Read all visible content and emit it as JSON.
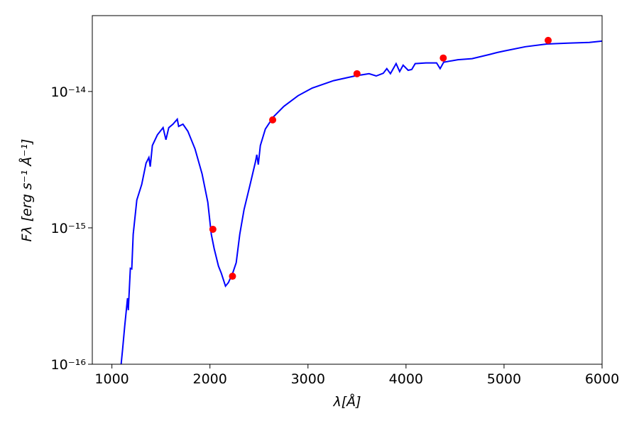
{
  "chart_data": {
    "type": "line",
    "xlabel": "λ[Å]",
    "ylabel": "Fλ [erg s⁻¹ Å⁻¹]",
    "xlim": [
      800,
      6000
    ],
    "xticks": [
      1000,
      2000,
      3000,
      4000,
      5000,
      6000
    ],
    "ylim": [
      1e-16,
      3.6e-14
    ],
    "yscale": "log",
    "yticks": [
      {
        "value": 1e-16,
        "label": "10⁻¹⁶"
      },
      {
        "value": 1e-15,
        "label": "10⁻¹⁵"
      },
      {
        "value": 1e-14,
        "label": "10⁻¹⁴"
      }
    ],
    "series": [
      {
        "type": "line",
        "color": "#0000ff",
        "x": [
          1094,
          1109,
          1130,
          1159,
          1167,
          1188,
          1203,
          1217,
          1254,
          1304,
          1348,
          1377,
          1391,
          1413,
          1464,
          1522,
          1551,
          1580,
          1623,
          1667,
          1681,
          1725,
          1775,
          1848,
          1920,
          1978,
          2014,
          2043,
          2087,
          2116,
          2159,
          2188,
          2232,
          2268,
          2304,
          2348,
          2406,
          2464,
          2478,
          2493,
          2514,
          2565,
          2645,
          2754,
          2899,
          3043,
          3261,
          3478,
          3623,
          3696,
          3768,
          3804,
          3841,
          3899,
          3935,
          3971,
          4022,
          4058,
          4094,
          4203,
          4312,
          4348,
          4384,
          4529,
          4674,
          4855,
          4928,
          5000,
          5217,
          5435,
          5652,
          5870,
          6000
        ],
        "values": [
          1e-16,
          1.29e-16,
          1.89e-16,
          3.05e-16,
          2.49e-16,
          5.05e-16,
          5e-16,
          8.97e-16,
          1.6e-15,
          2.08e-15,
          2.98e-15,
          3.28e-15,
          2.81e-15,
          4.02e-15,
          4.81e-15,
          5.43e-15,
          4.43e-15,
          5.43e-15,
          5.76e-15,
          6.27e-15,
          5.55e-15,
          5.76e-15,
          5.11e-15,
          3.79e-15,
          2.49e-15,
          1.54e-15,
          8.97e-16,
          7.06e-16,
          5.24e-16,
          4.65e-16,
          3.74e-16,
          3.97e-16,
          4.65e-16,
          5.56e-16,
          8.97e-16,
          1.36e-15,
          2.03e-15,
          3.05e-15,
          3.44e-15,
          2.91e-15,
          4.02e-15,
          5.3e-15,
          6.49e-15,
          7.78e-15,
          9.31e-15,
          1.06e-14,
          1.2e-14,
          1.3e-14,
          1.35e-14,
          1.3e-14,
          1.36e-14,
          1.47e-14,
          1.35e-14,
          1.6e-14,
          1.4e-14,
          1.56e-14,
          1.43e-14,
          1.45e-14,
          1.6e-14,
          1.62e-14,
          1.62e-14,
          1.47e-14,
          1.64e-14,
          1.71e-14,
          1.74e-14,
          1.87e-14,
          1.93e-14,
          1.98e-14,
          2.13e-14,
          2.23e-14,
          2.26e-14,
          2.29e-14,
          2.34e-14
        ]
      },
      {
        "type": "scatter",
        "color": "#ff0000",
        "x": [
          2030,
          2230,
          2640,
          3500,
          4380,
          5450
        ],
        "values": [
          9.76e-16,
          4.42e-16,
          6.19e-15,
          1.35e-14,
          1.76e-14,
          2.37e-14
        ]
      }
    ]
  }
}
